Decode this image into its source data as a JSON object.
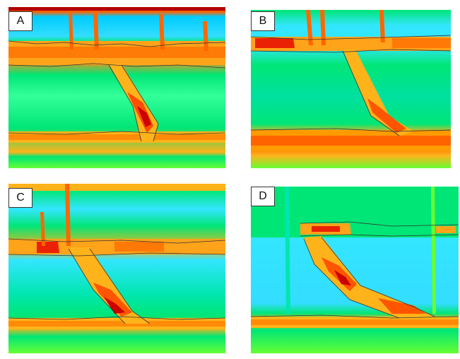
{
  "figure": {
    "panels": [
      {
        "label": "A"
      },
      {
        "label": "B"
      },
      {
        "label": "C"
      },
      {
        "label": "D"
      }
    ],
    "colormap": [
      "#00ccff",
      "#33e6ff",
      "#00e676",
      "#a6ff4d",
      "#ffff33",
      "#ffb31a",
      "#ff6600",
      "#e60000",
      "#b30000"
    ]
  }
}
